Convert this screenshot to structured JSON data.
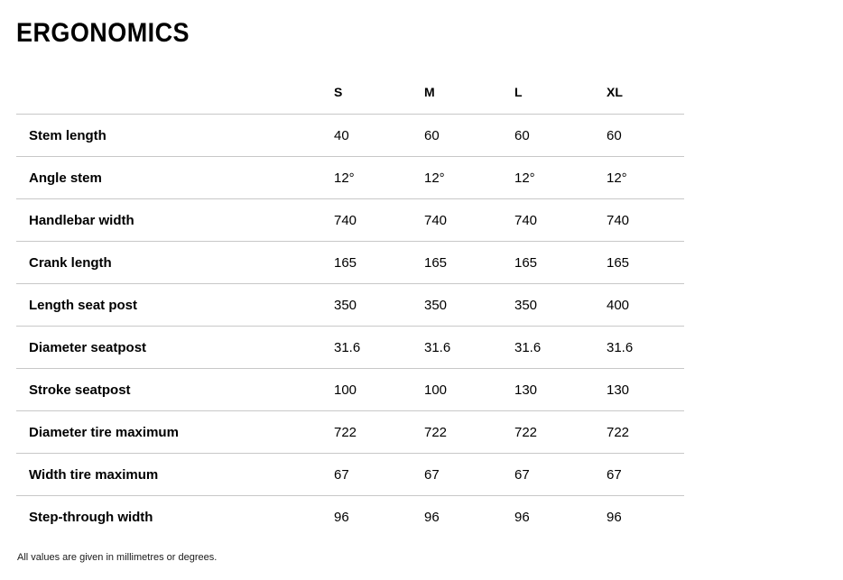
{
  "page": {
    "title": "ERGONOMICS",
    "footnote": "All values are given in millimetres or degrees."
  },
  "table": {
    "columns": [
      "S",
      "M",
      "L",
      "XL"
    ],
    "rows": [
      {
        "label": "Stem length",
        "values": [
          "40",
          "60",
          "60",
          "60"
        ]
      },
      {
        "label": "Angle stem",
        "values": [
          "12°",
          "12°",
          "12°",
          "12°"
        ]
      },
      {
        "label": "Handlebar width",
        "values": [
          "740",
          "740",
          "740",
          "740"
        ]
      },
      {
        "label": "Crank length",
        "values": [
          "165",
          "165",
          "165",
          "165"
        ]
      },
      {
        "label": "Length seat post",
        "values": [
          "350",
          "350",
          "350",
          "400"
        ]
      },
      {
        "label": "Diameter seatpost",
        "values": [
          "31.6",
          "31.6",
          "31.6",
          "31.6"
        ]
      },
      {
        "label": "Stroke seatpost",
        "values": [
          "100",
          "100",
          "130",
          "130"
        ]
      },
      {
        "label": "Diameter tire maximum",
        "values": [
          "722",
          "722",
          "722",
          "722"
        ]
      },
      {
        "label": "Width tire maximum",
        "values": [
          "67",
          "67",
          "67",
          "67"
        ]
      },
      {
        "label": "Step-through width",
        "values": [
          "96",
          "96",
          "96",
          "96"
        ]
      }
    ]
  },
  "colors": {
    "text": "#000000",
    "divider": "#c8c8c8"
  }
}
